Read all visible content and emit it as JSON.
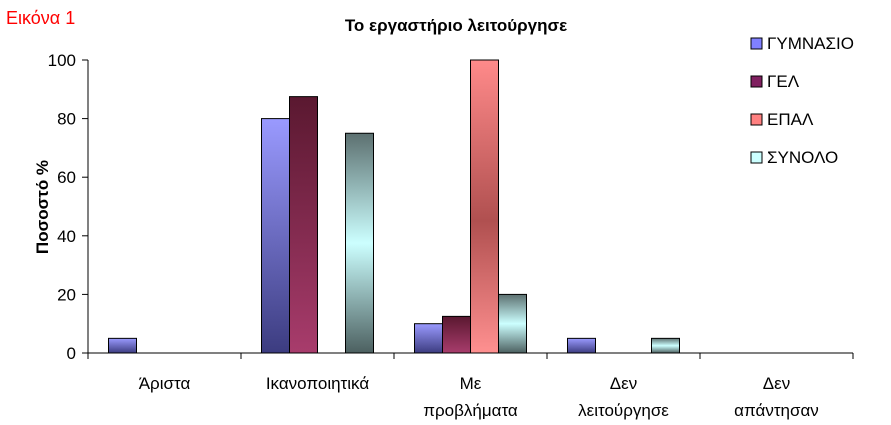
{
  "figure_label": "Εικόνα 1",
  "chart_data": {
    "type": "bar",
    "title": "Το εργαστήριο λειτούργησε",
    "ylabel": "Ποσοστό %",
    "xlabel": "",
    "ylim": [
      0,
      100
    ],
    "yticks": [
      0,
      20,
      40,
      60,
      80,
      100
    ],
    "grid": false,
    "legend_position": "right",
    "categories": [
      [
        "Άριστα"
      ],
      [
        "Ικανοποιητικά"
      ],
      [
        "Με",
        "προβλήματα"
      ],
      [
        "Δεν",
        "λειτούργησε"
      ],
      [
        "Δεν",
        "απάντησαν"
      ]
    ],
    "series": [
      {
        "name": "ΓΥΜΝΑΣΙΟ",
        "color": "#8080ff",
        "values": [
          5,
          80,
          10,
          5,
          0
        ]
      },
      {
        "name": "ΓΕΛ",
        "color": "#802060",
        "values": [
          0,
          87.5,
          12.5,
          0,
          0
        ]
      },
      {
        "name": "ΕΠΑΛ",
        "color": "#ff8080",
        "values": [
          0,
          0,
          100,
          0,
          0
        ]
      },
      {
        "name": "ΣΥΝΟΛΟ",
        "color": "#ccffff",
        "values": [
          0,
          75,
          20,
          5,
          0
        ]
      }
    ]
  }
}
